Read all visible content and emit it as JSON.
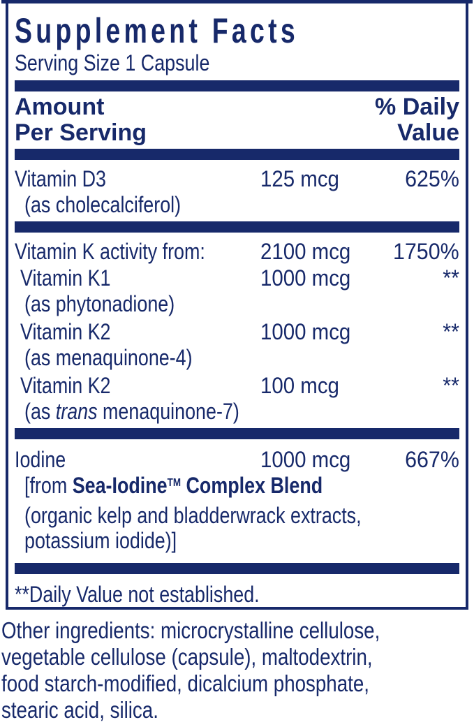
{
  "colors": {
    "navy": "#17296a",
    "background": "#ffffff"
  },
  "panel": {
    "title": "Supplement Facts",
    "serving_size": "Serving Size 1 Capsule",
    "header": {
      "amount_line1": "Amount",
      "amount_line2": "Per Serving",
      "dv_line1": "% Daily",
      "dv_line2": "Value"
    },
    "sections": [
      {
        "rows": [
          {
            "name": "Vitamin D3",
            "amount": "125 mcg",
            "dv": "625%",
            "indent": 0,
            "sub": [
              [
                {
                  "t": "(as cholecalciferol)"
                }
              ]
            ]
          }
        ]
      },
      {
        "rows": [
          {
            "name": "Vitamin K activity from:",
            "amount": "2100 mcg",
            "dv": "1750%",
            "indent": 0,
            "sub": []
          },
          {
            "name": "Vitamin K1",
            "amount": "1000 mcg",
            "dv": "**",
            "indent": 1,
            "sub": [
              [
                {
                  "t": "(as phytonadione)"
                }
              ]
            ]
          },
          {
            "name": "Vitamin K2",
            "amount": "1000 mcg",
            "dv": "**",
            "indent": 1,
            "sub": [
              [
                {
                  "t": "(as menaquinone-4)"
                }
              ]
            ]
          },
          {
            "name": "Vitamin K2",
            "amount": "100 mcg",
            "dv": "**",
            "indent": 1,
            "sub": [
              [
                {
                  "t": "(as "
                },
                {
                  "t": "trans",
                  "i": true
                },
                {
                  "t": " menaquinone-7)"
                }
              ]
            ]
          }
        ]
      },
      {
        "rows": [
          {
            "name": "Iodine",
            "amount": "1000 mcg",
            "dv": "667%",
            "indent": 0,
            "sub": [
              [
                {
                  "t": "[from "
                },
                {
                  "t": "Sea-Iodine",
                  "b": true
                },
                {
                  "t": "TM",
                  "b": true,
                  "sup": true
                },
                {
                  "t": " Complex Blend",
                  "b": true
                }
              ],
              [
                {
                  "t": "(organic kelp and bladderwrack extracts,"
                }
              ],
              [
                {
                  "t": "potassium iodide)]"
                }
              ]
            ]
          }
        ]
      }
    ],
    "footnote": "**Daily Value not established."
  },
  "other_ingredients": {
    "lines": [
      "Other ingredients: microcrystalline cellulose,",
      "vegetable cellulose (capsule), maltodextrin,",
      "food starch-modified, dicalcium phosphate,",
      "stearic acid, silica."
    ]
  }
}
